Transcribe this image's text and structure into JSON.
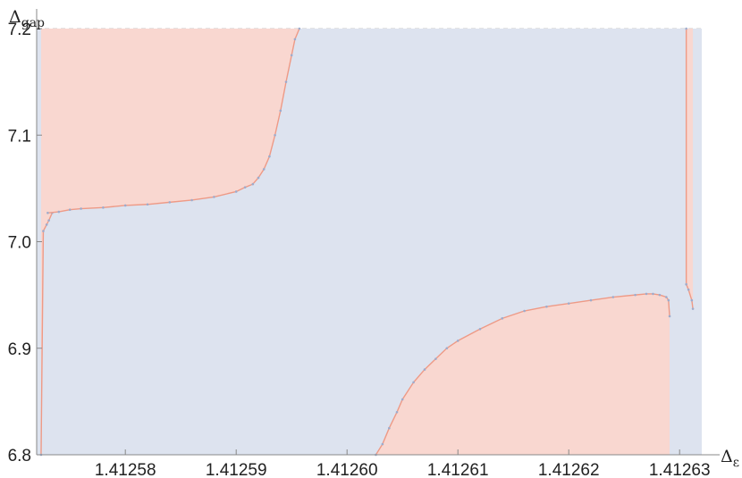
{
  "chart_data": {
    "type": "area",
    "xlabel": "Δ_ε",
    "ylabel": "Δ_gap",
    "xlim": [
      1.412572,
      1.412632
    ],
    "ylim": [
      6.8,
      7.2
    ],
    "x_ticks": [
      1.41258,
      1.41259,
      1.4126,
      1.41261,
      1.41262,
      1.41263
    ],
    "x_tick_labels": [
      "1.41258",
      "1.41259",
      "1.41260",
      "1.41261",
      "1.41262",
      "1.41263"
    ],
    "y_ticks": [
      6.8,
      6.9,
      7.0,
      7.1,
      7.2
    ],
    "y_tick_labels": [
      "6.8",
      "6.9",
      "7.0",
      "7.1",
      "7.2"
    ],
    "grid": true,
    "colors": {
      "excluded": "#f9d7d0",
      "allowed": "#dde3ef",
      "excluded_line": "#ee9a86",
      "allowed_line": "#9fabcb",
      "axis": "#888888"
    },
    "series": [
      {
        "region": "excluded",
        "x": [
          1.4125724,
          1.4125726,
          1.4125729,
          1.4125731,
          1.4125734,
          1.4125734,
          1.4125724
        ],
        "y": [
          6.8,
          7.01,
          7.016,
          7.02,
          7.027,
          7.2,
          7.2
        ]
      },
      {
        "region": "excluded",
        "x": [
          1.412573,
          1.412574,
          1.412575,
          1.412576,
          1.412578,
          1.41258,
          1.412582,
          1.412584,
          1.412586,
          1.412588,
          1.41259,
          1.4125908,
          1.4125915,
          1.412592,
          1.4125925,
          1.412593,
          1.4125935,
          1.412594,
          1.4125945,
          1.412595,
          1.4125953,
          1.4125957,
          1.4125957,
          1.412573
        ],
        "y": [
          7.027,
          7.028,
          7.03,
          7.031,
          7.032,
          7.034,
          7.035,
          7.037,
          7.039,
          7.042,
          7.047,
          7.051,
          7.054,
          7.06,
          7.068,
          7.08,
          7.1,
          7.123,
          7.15,
          7.175,
          7.19,
          7.2,
          7.2,
          7.2
        ]
      },
      {
        "region": "excluded",
        "x": [
          1.4126026,
          1.4126032,
          1.4126038,
          1.4126045,
          1.412605,
          1.412606,
          1.412607,
          1.412608,
          1.412609,
          1.41261,
          1.412612,
          1.412614,
          1.412616,
          1.412618,
          1.41262,
          1.412622,
          1.412624,
          1.412626,
          1.412627,
          1.4126276,
          1.4126282,
          1.4126288,
          1.412629,
          1.4126291,
          1.4126291,
          1.4126026
        ],
        "y": [
          6.8,
          6.81,
          6.825,
          6.84,
          6.852,
          6.868,
          6.88,
          6.89,
          6.9,
          6.907,
          6.918,
          6.928,
          6.935,
          6.939,
          6.942,
          6.945,
          6.948,
          6.95,
          6.951,
          6.951,
          6.95,
          6.948,
          6.945,
          6.93,
          6.8,
          6.8
        ]
      },
      {
        "region": "excluded",
        "x": [
          1.4126306,
          1.4126306,
          1.4126308,
          1.4126311,
          1.4126312,
          1.4126312,
          1.4126306
        ],
        "y": [
          7.2,
          6.96,
          6.955,
          6.945,
          6.937,
          7.2,
          7.2
        ]
      }
    ]
  }
}
